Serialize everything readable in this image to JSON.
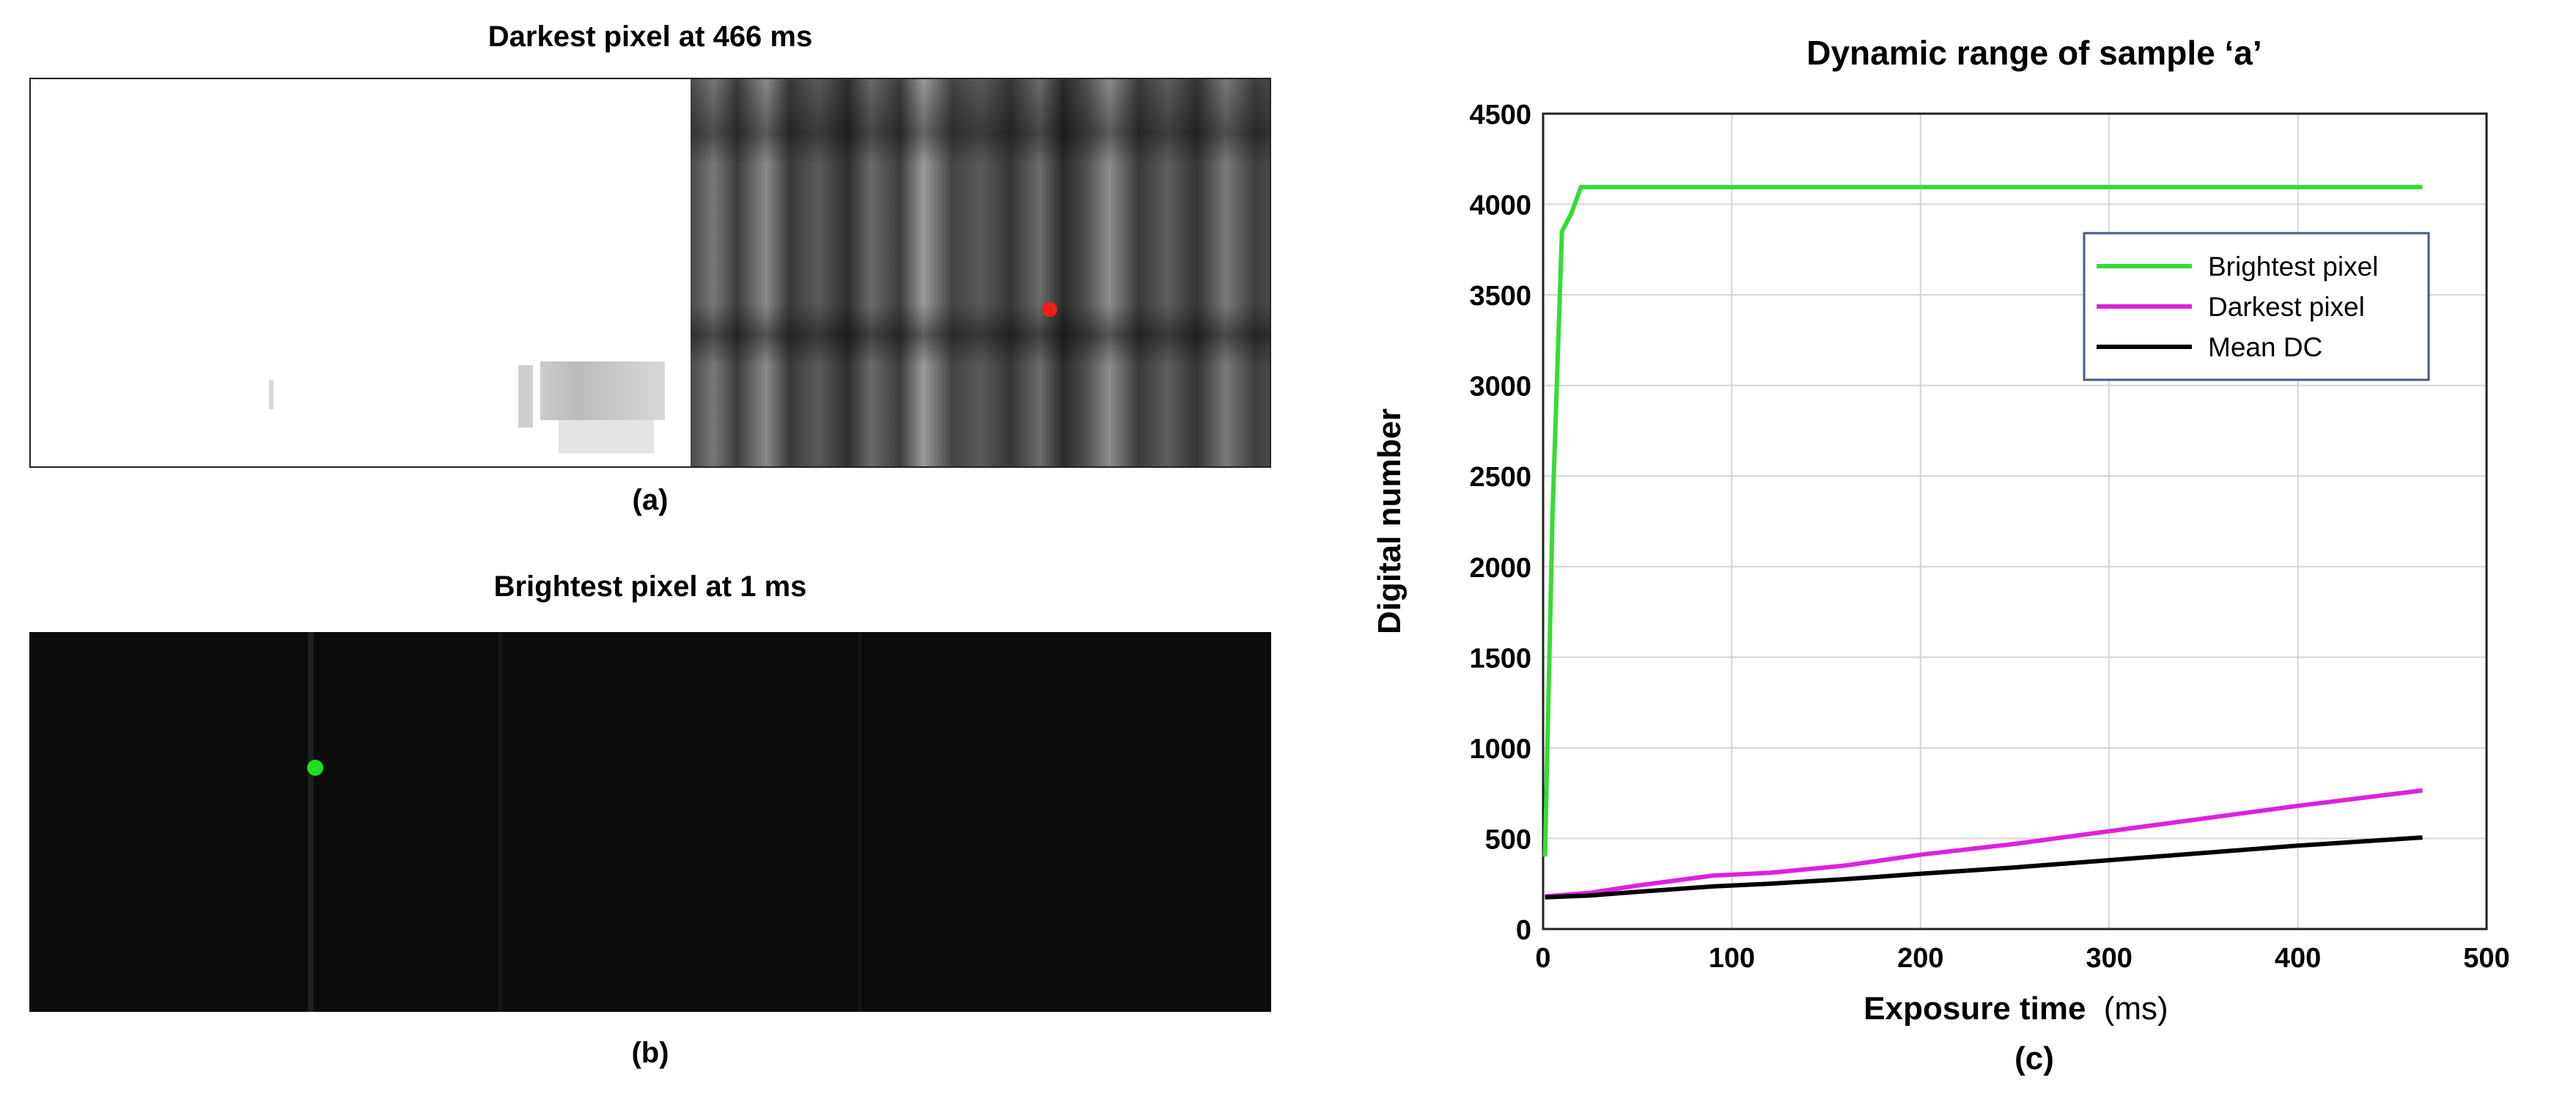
{
  "panel_a": {
    "title": "Darkest pixel at 466 ms",
    "caption": "(a)",
    "marker_color": "#ff1a1a"
  },
  "panel_b": {
    "title": "Brightest pixel at 1 ms",
    "caption": "(b)",
    "marker_color": "#22dd22"
  },
  "panel_c": {
    "caption": "(c)"
  },
  "chart_data": {
    "type": "line",
    "title": "Dynamic range of sample ‘a’",
    "xlabel": "Exposure time",
    "xlabel_unit": "(ms)",
    "ylabel": "Digital number",
    "xlim": [
      0,
      500
    ],
    "ylim": [
      0,
      4500
    ],
    "xticks": [
      0,
      100,
      200,
      300,
      400,
      500
    ],
    "yticks": [
      0,
      500,
      1000,
      1500,
      2000,
      2500,
      3000,
      3500,
      4000,
      4500
    ],
    "grid": true,
    "legend_position": "top-right",
    "series": [
      {
        "name": "Brightest pixel",
        "color": "#33dd33",
        "x": [
          1,
          5,
          10,
          15,
          20,
          25,
          50,
          100,
          200,
          300,
          400,
          466
        ],
        "y": [
          400,
          2300,
          3850,
          3950,
          4095,
          4095,
          4095,
          4095,
          4095,
          4095,
          4095,
          4095
        ]
      },
      {
        "name": "Darkest pixel",
        "color": "#dd22dd",
        "x": [
          1,
          25,
          50,
          90,
          120,
          160,
          200,
          250,
          300,
          350,
          400,
          466
        ],
        "y": [
          180,
          200,
          240,
          295,
          310,
          350,
          410,
          470,
          540,
          610,
          680,
          765
        ]
      },
      {
        "name": "Mean DC",
        "color": "#000000",
        "x": [
          1,
          25,
          50,
          90,
          120,
          160,
          200,
          250,
          300,
          350,
          400,
          466
        ],
        "y": [
          175,
          185,
          205,
          235,
          250,
          275,
          305,
          340,
          380,
          420,
          460,
          505
        ]
      }
    ]
  }
}
